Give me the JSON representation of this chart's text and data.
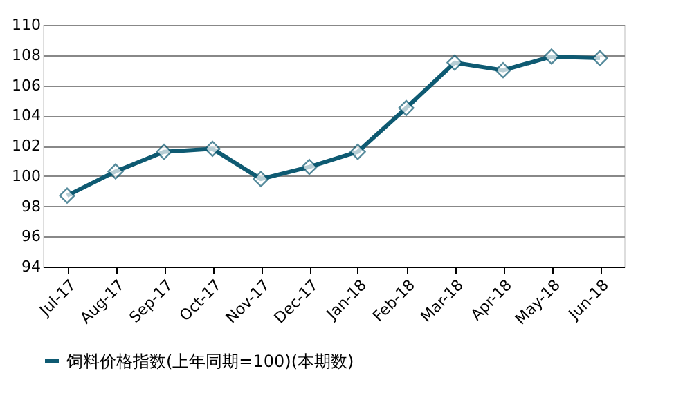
{
  "chart_data": {
    "type": "line",
    "categories": [
      "Jul-17",
      "Aug-17",
      "Sep-17",
      "Oct-17",
      "Nov-17",
      "Dec-17",
      "Jan-18",
      "Feb-18",
      "Mar-18",
      "Apr-18",
      "May-18",
      "Jun-18"
    ],
    "series": [
      {
        "name": "饲料价格指数(上年同期=100)(本期数)",
        "color": "#0e5a72",
        "values": [
          98.7,
          100.3,
          101.6,
          101.8,
          99.8,
          100.6,
          101.6,
          104.5,
          107.5,
          107.0,
          107.9,
          107.8
        ]
      }
    ],
    "ylim": [
      94,
      110
    ],
    "yticks": [
      94,
      96,
      98,
      100,
      102,
      104,
      106,
      108,
      110
    ],
    "grid": "y",
    "legend": "bottom",
    "marker": "diamond",
    "line_style": "solid"
  }
}
